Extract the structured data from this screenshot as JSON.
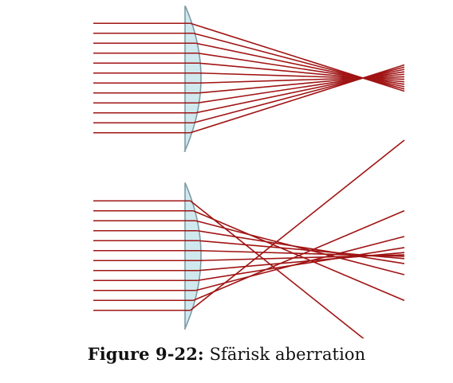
{
  "caption": {
    "label": "Figure 9-22:",
    "text": "Sfärisk aberration"
  },
  "colors": {
    "ray": "#a01414",
    "lens_fill": "#cfe9ee",
    "lens_stroke": "#7e9aa6",
    "background": "#ffffff"
  },
  "diagrams": [
    {
      "id": "corrected",
      "rays": 12,
      "focus": "single-point"
    },
    {
      "id": "spherical",
      "rays": 12,
      "focus": "spread"
    }
  ]
}
